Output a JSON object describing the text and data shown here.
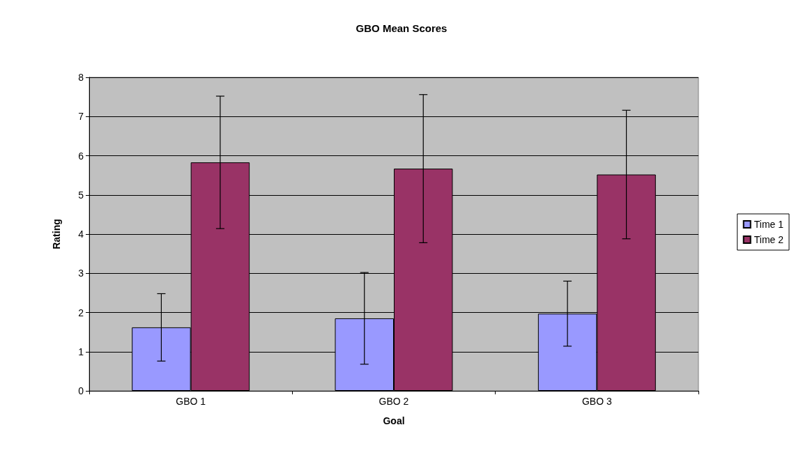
{
  "chart_data": {
    "type": "bar",
    "title": "GBO Mean Scores",
    "xlabel": "Goal",
    "ylabel": "Rating",
    "categories": [
      "GBO 1",
      "GBO 2",
      "GBO 3"
    ],
    "series": [
      {
        "name": "Time 1",
        "color": "#9999ff",
        "values": [
          1.62,
          1.85,
          1.97
        ],
        "errors": [
          0.86,
          1.17,
          0.83
        ]
      },
      {
        "name": "Time 2",
        "color": "#993366",
        "values": [
          5.83,
          5.67,
          5.52
        ],
        "errors": [
          1.69,
          1.89,
          1.64
        ]
      }
    ],
    "ylim": [
      0,
      8
    ],
    "yticks": [
      0,
      1,
      2,
      3,
      4,
      5,
      6,
      7,
      8
    ],
    "grid": "y",
    "legend": "right"
  }
}
